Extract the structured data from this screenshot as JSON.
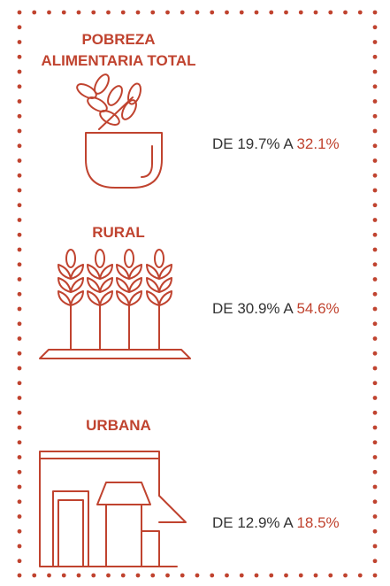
{
  "sections": [
    {
      "title_lines": [
        "POBREZA",
        "ALIMENTARIA TOTAL"
      ],
      "text": "DE 19.7% A",
      "highlight": "32.1%"
    },
    {
      "title_lines": [
        "RURAL"
      ],
      "text": "DE 30.9% A",
      "highlight": "54.6%"
    },
    {
      "title_lines": [
        "URBANA"
      ],
      "text": "DE 12.9% A",
      "highlight": "18.5%"
    }
  ]
}
